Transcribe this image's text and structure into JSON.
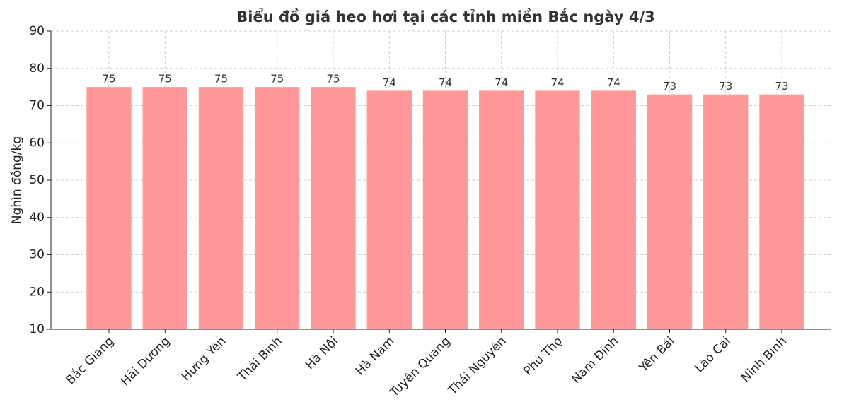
{
  "chart_data": {
    "type": "bar",
    "title": "Biểu đồ giá heo hơi tại các tỉnh miền Bắc ngày 4/3",
    "y_label": "Nghìn đồng/kg",
    "categories": [
      "Bắc Giang",
      "Hải Dương",
      "Hưng Yên",
      "Thái Bình",
      "Hà Nội",
      "Hà Nam",
      "Tuyên Quang",
      "Thái Nguyên",
      "Phú Thọ",
      "Nam Định",
      "Yên Bái",
      "Lào Cai",
      "Ninh Bình"
    ],
    "values": [
      75,
      75,
      75,
      75,
      75,
      74,
      74,
      74,
      74,
      74,
      73,
      73,
      73
    ],
    "color": "#ff9999",
    "ylim": [
      10,
      90
    ],
    "yticks": [
      10,
      20,
      30,
      40,
      50,
      60,
      70,
      80,
      90
    ],
    "grid": true
  }
}
